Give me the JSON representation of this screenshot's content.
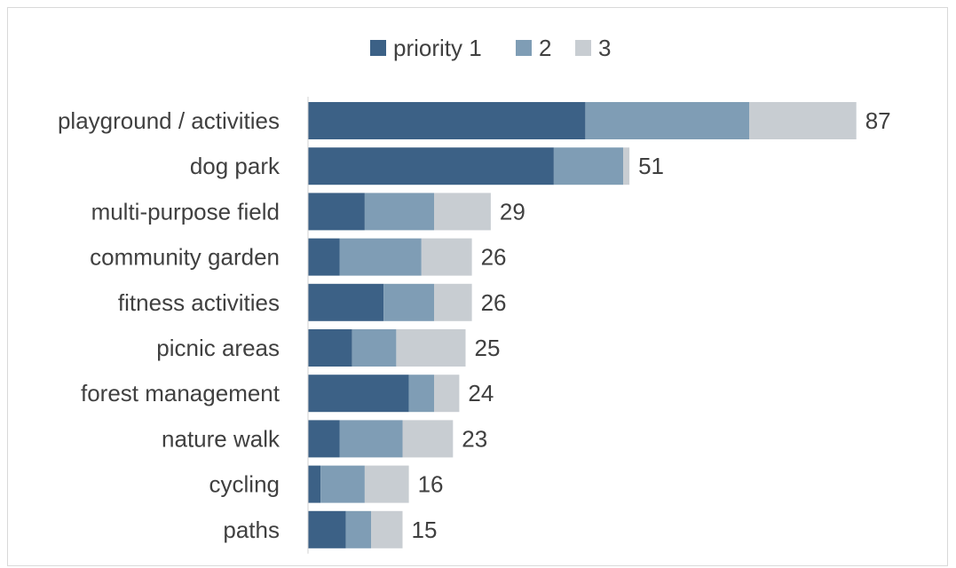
{
  "chart_data": {
    "type": "bar",
    "orientation": "horizontal",
    "stacked": true,
    "title": "",
    "xlabel": "",
    "ylabel": "",
    "categories": [
      "playground / activities",
      "dog park",
      "multi-purpose field",
      "community garden",
      "fitness activities",
      "picnic areas",
      "forest management",
      "nature walk",
      "cycling",
      "paths"
    ],
    "series": [
      {
        "name": "priority 1",
        "color": "#3c6186",
        "values": [
          44,
          39,
          9,
          5,
          12,
          7,
          16,
          5,
          2,
          6
        ]
      },
      {
        "name": "2",
        "color": "#7f9db5",
        "values": [
          26,
          11,
          11,
          13,
          8,
          7,
          4,
          10,
          7,
          4
        ]
      },
      {
        "name": "3",
        "color": "#c8cdd2",
        "values": [
          17,
          1,
          9,
          8,
          6,
          11,
          4,
          8,
          7,
          5
        ]
      }
    ],
    "totals": [
      87,
      51,
      29,
      26,
      26,
      25,
      24,
      23,
      16,
      15
    ],
    "xlim": [
      0,
      100
    ],
    "grid": false,
    "legend_position": "top-center"
  }
}
